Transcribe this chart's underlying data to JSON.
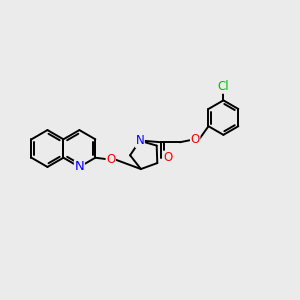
{
  "bg_color": "#EBEBEB",
  "bond_color": "#000000",
  "bond_width": 1.4,
  "atom_colors": {
    "N": "#0000FF",
    "O": "#FF0000",
    "Cl": "#00BB00",
    "C": "#000000"
  },
  "font_size": 8.5,
  "xlim": [
    0,
    10
  ],
  "ylim": [
    0,
    10
  ]
}
